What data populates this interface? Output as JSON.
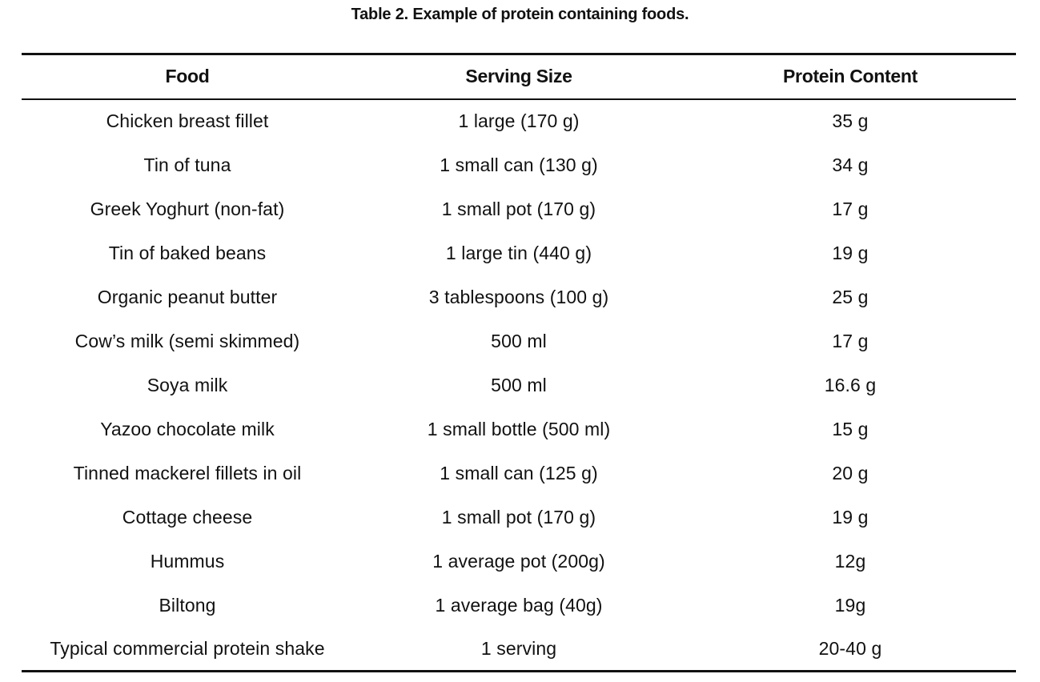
{
  "caption": "Table 2. Example of protein containing foods.",
  "table": {
    "headers": [
      "Food",
      "Serving Size",
      "Protein Content"
    ],
    "rows": [
      [
        "Chicken breast fillet",
        "1 large (170 g)",
        "35 g"
      ],
      [
        "Tin of tuna",
        "1 small can (130 g)",
        "34 g"
      ],
      [
        "Greek Yoghurt (non-fat)",
        "1 small pot (170 g)",
        "17 g"
      ],
      [
        "Tin of baked beans",
        "1 large tin (440 g)",
        "19 g"
      ],
      [
        "Organic peanut butter",
        "3 tablespoons (100 g)",
        "25 g"
      ],
      [
        "Cow’s milk (semi skimmed)",
        "500 ml",
        "17 g"
      ],
      [
        "Soya milk",
        "500 ml",
        "16.6 g"
      ],
      [
        "Yazoo chocolate milk",
        "1 small bottle (500 ml)",
        "15 g"
      ],
      [
        "Tinned mackerel fillets in oil",
        "1 small can (125 g)",
        "20 g"
      ],
      [
        "Cottage cheese",
        "1 small pot (170 g)",
        "19 g"
      ],
      [
        "Hummus",
        "1 average pot (200g)",
        "12g"
      ],
      [
        "Biltong",
        "1 average bag (40g)",
        "19g"
      ],
      [
        "Typical commercial protein shake",
        "1 serving",
        "20-40 g"
      ]
    ]
  }
}
